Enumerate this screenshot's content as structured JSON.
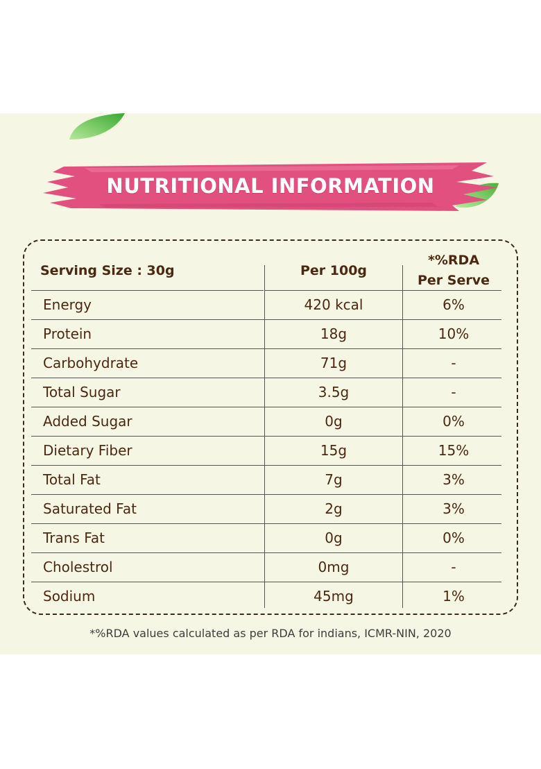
{
  "title": "NUTRITIONAL INFORMATION",
  "colors": {
    "banner": "#e2507f",
    "text": "#4a2812",
    "background": "#f6f6e4",
    "leaf": "#5cbf3c"
  },
  "icons": [
    "leaf-icon"
  ],
  "table": {
    "headers": {
      "serving": "Serving Size : 30g",
      "per100": "Per 100g",
      "rda_line1": "*%RDA",
      "rda_line2": "Per Serve"
    },
    "rows": [
      {
        "nutrient": "Energy",
        "per100": "420 kcal",
        "rda": "6%"
      },
      {
        "nutrient": "Protein",
        "per100": "18g",
        "rda": "10%"
      },
      {
        "nutrient": "Carbohydrate",
        "per100": "71g",
        "rda": "-"
      },
      {
        "nutrient": "Total Sugar",
        "per100": "3.5g",
        "rda": "-"
      },
      {
        "nutrient": "Added Sugar",
        "per100": "0g",
        "rda": "0%"
      },
      {
        "nutrient": "Dietary Fiber",
        "per100": "15g",
        "rda": "15%"
      },
      {
        "nutrient": "Total Fat",
        "per100": "7g",
        "rda": "3%"
      },
      {
        "nutrient": "Saturated Fat",
        "per100": "2g",
        "rda": "3%"
      },
      {
        "nutrient": "Trans Fat",
        "per100": "0g",
        "rda": "0%"
      },
      {
        "nutrient": "Cholestrol",
        "per100": "0mg",
        "rda": "-"
      },
      {
        "nutrient": "Sodium",
        "per100": "45mg",
        "rda": "1%"
      }
    ]
  },
  "footnote": "*%RDA values calculated as per RDA for indians, ICMR-NIN, 2020"
}
